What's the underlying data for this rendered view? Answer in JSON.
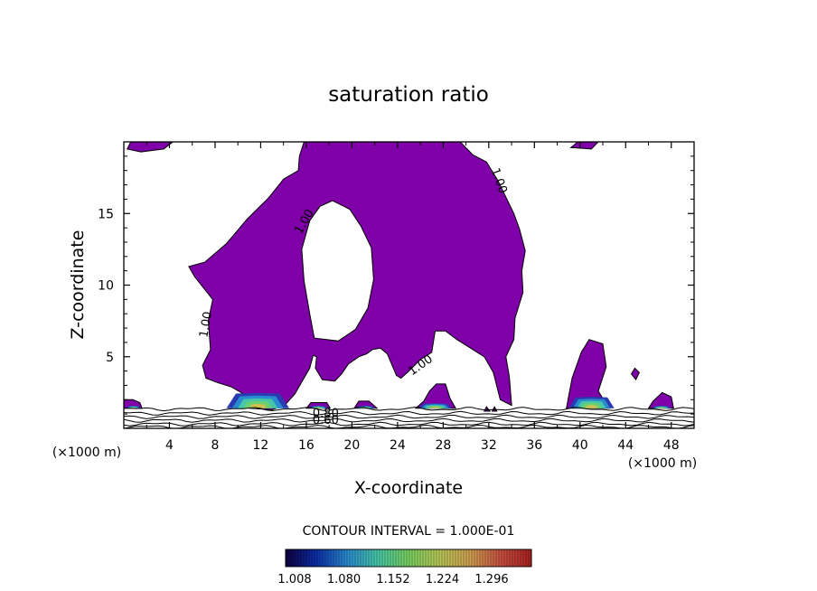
{
  "chart_data": {
    "type": "contour",
    "title": "saturation ratio",
    "xlabel": "X-coordinate",
    "ylabel": "Z-coordinate",
    "x_units_left": "(×1000 m)",
    "x_units_right": "(×1000 m)",
    "xlim": [
      0,
      50
    ],
    "ylim": [
      0,
      20
    ],
    "x_ticks": [
      4,
      8,
      12,
      16,
      20,
      24,
      28,
      32,
      36,
      40,
      44,
      48
    ],
    "y_ticks": [
      5,
      10,
      15
    ],
    "fill_threshold": 1.0,
    "fill_color": "#7f00a8",
    "contour_labels": [
      {
        "text": "1.00",
        "x": 32.6,
        "y": 17.2,
        "angle": 70
      },
      {
        "text": "1.00",
        "x": 16.1,
        "y": 14.3,
        "angle": -60
      },
      {
        "text": "1.00",
        "x": 7.5,
        "y": 7.2,
        "angle": -80
      },
      {
        "text": "1.00",
        "x": 26.2,
        "y": 4.2,
        "angle": -35
      },
      {
        "text": "0.80",
        "x": 17.7,
        "y": 0.8,
        "angle": 0
      },
      {
        "text": "0.60",
        "x": 17.7,
        "y": 0.3,
        "angle": 0
      }
    ],
    "contour_interval_label": "CONTOUR INTERVAL = 1.000E-01",
    "colorbar": {
      "ticks": [
        "1.008",
        "1.080",
        "1.152",
        "1.224",
        "1.296"
      ],
      "colors": [
        "#100040",
        "#0a2ea8",
        "#2a8ad0",
        "#46c8a8",
        "#78d060",
        "#b8c858",
        "#d0a050",
        "#c85040",
        "#a82020"
      ]
    }
  }
}
